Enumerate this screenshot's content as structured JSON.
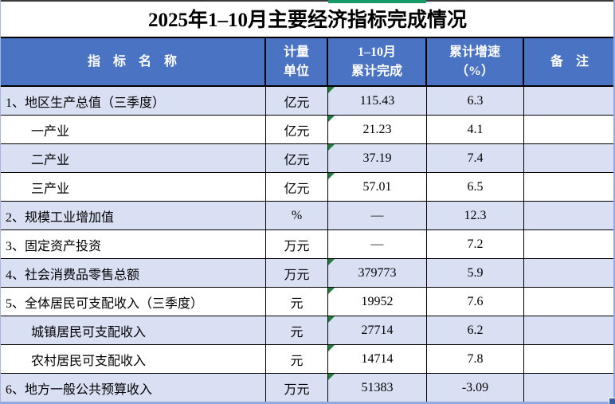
{
  "title": "2025年1–10月主要经济指标完成情况",
  "table": {
    "header": {
      "indicator": "指　标　名　称",
      "unit": "计量\n单位",
      "completed": "1–10月\n累计完成",
      "growth": "累计增速\n（%）",
      "note": "备　注"
    },
    "rows": [
      {
        "name": "1、地区生产总值（三季度）",
        "unit": "亿元",
        "value": "115.43",
        "growth": "6.3",
        "note": "",
        "indent": false,
        "marker": true
      },
      {
        "name": "一产业",
        "unit": "亿元",
        "value": "21.23",
        "growth": "4.1",
        "note": "",
        "indent": true,
        "marker": true
      },
      {
        "name": "二产业",
        "unit": "亿元",
        "value": "37.19",
        "growth": "7.4",
        "note": "",
        "indent": true,
        "marker": true
      },
      {
        "name": "三产业",
        "unit": "亿元",
        "value": "57.01",
        "growth": "6.5",
        "note": "",
        "indent": true,
        "marker": true
      },
      {
        "name": "2、规模工业增加值",
        "unit": "%",
        "value": "—",
        "growth": "12.3",
        "note": "",
        "indent": false,
        "marker": false
      },
      {
        "name": "3、固定资产投资",
        "unit": "万元",
        "value": "—",
        "growth": "7.2",
        "note": "",
        "indent": false,
        "marker": false
      },
      {
        "name": "4、社会消费品零售总额",
        "unit": "万元",
        "value": "379773",
        "growth": "5.9",
        "note": "",
        "indent": false,
        "marker": true
      },
      {
        "name": "5、全体居民可支配收入（三季度）",
        "unit": "元",
        "value": "19952",
        "growth": "7.6",
        "note": "",
        "indent": false,
        "marker": true
      },
      {
        "name": "城镇居民可支配收入",
        "unit": "元",
        "value": "27714",
        "growth": "6.2",
        "note": "",
        "indent": true,
        "marker": true
      },
      {
        "name": "农村居民可支配收入",
        "unit": "元",
        "value": "14714",
        "growth": "7.8",
        "note": "",
        "indent": true,
        "marker": true
      },
      {
        "name": "6、地方一般公共预算收入",
        "unit": "万元",
        "value": "51383",
        "growth": "-3.09",
        "note": "",
        "indent": false,
        "marker": true
      }
    ]
  },
  "icons": {
    "error_marker": "green-corner-triangle",
    "fill_handle": "selection-fill-handle",
    "green_strip": "cell-top-accent-strip"
  },
  "colors": {
    "header_bg": "#4a73c4",
    "row_alt_bg": "#d9e0f3",
    "marker_green": "#1e7e3e",
    "strip_green": "#189a68",
    "selection_blue": "#93aadf",
    "handle_blue": "#3d5fa8",
    "grid_black": "#000000"
  }
}
